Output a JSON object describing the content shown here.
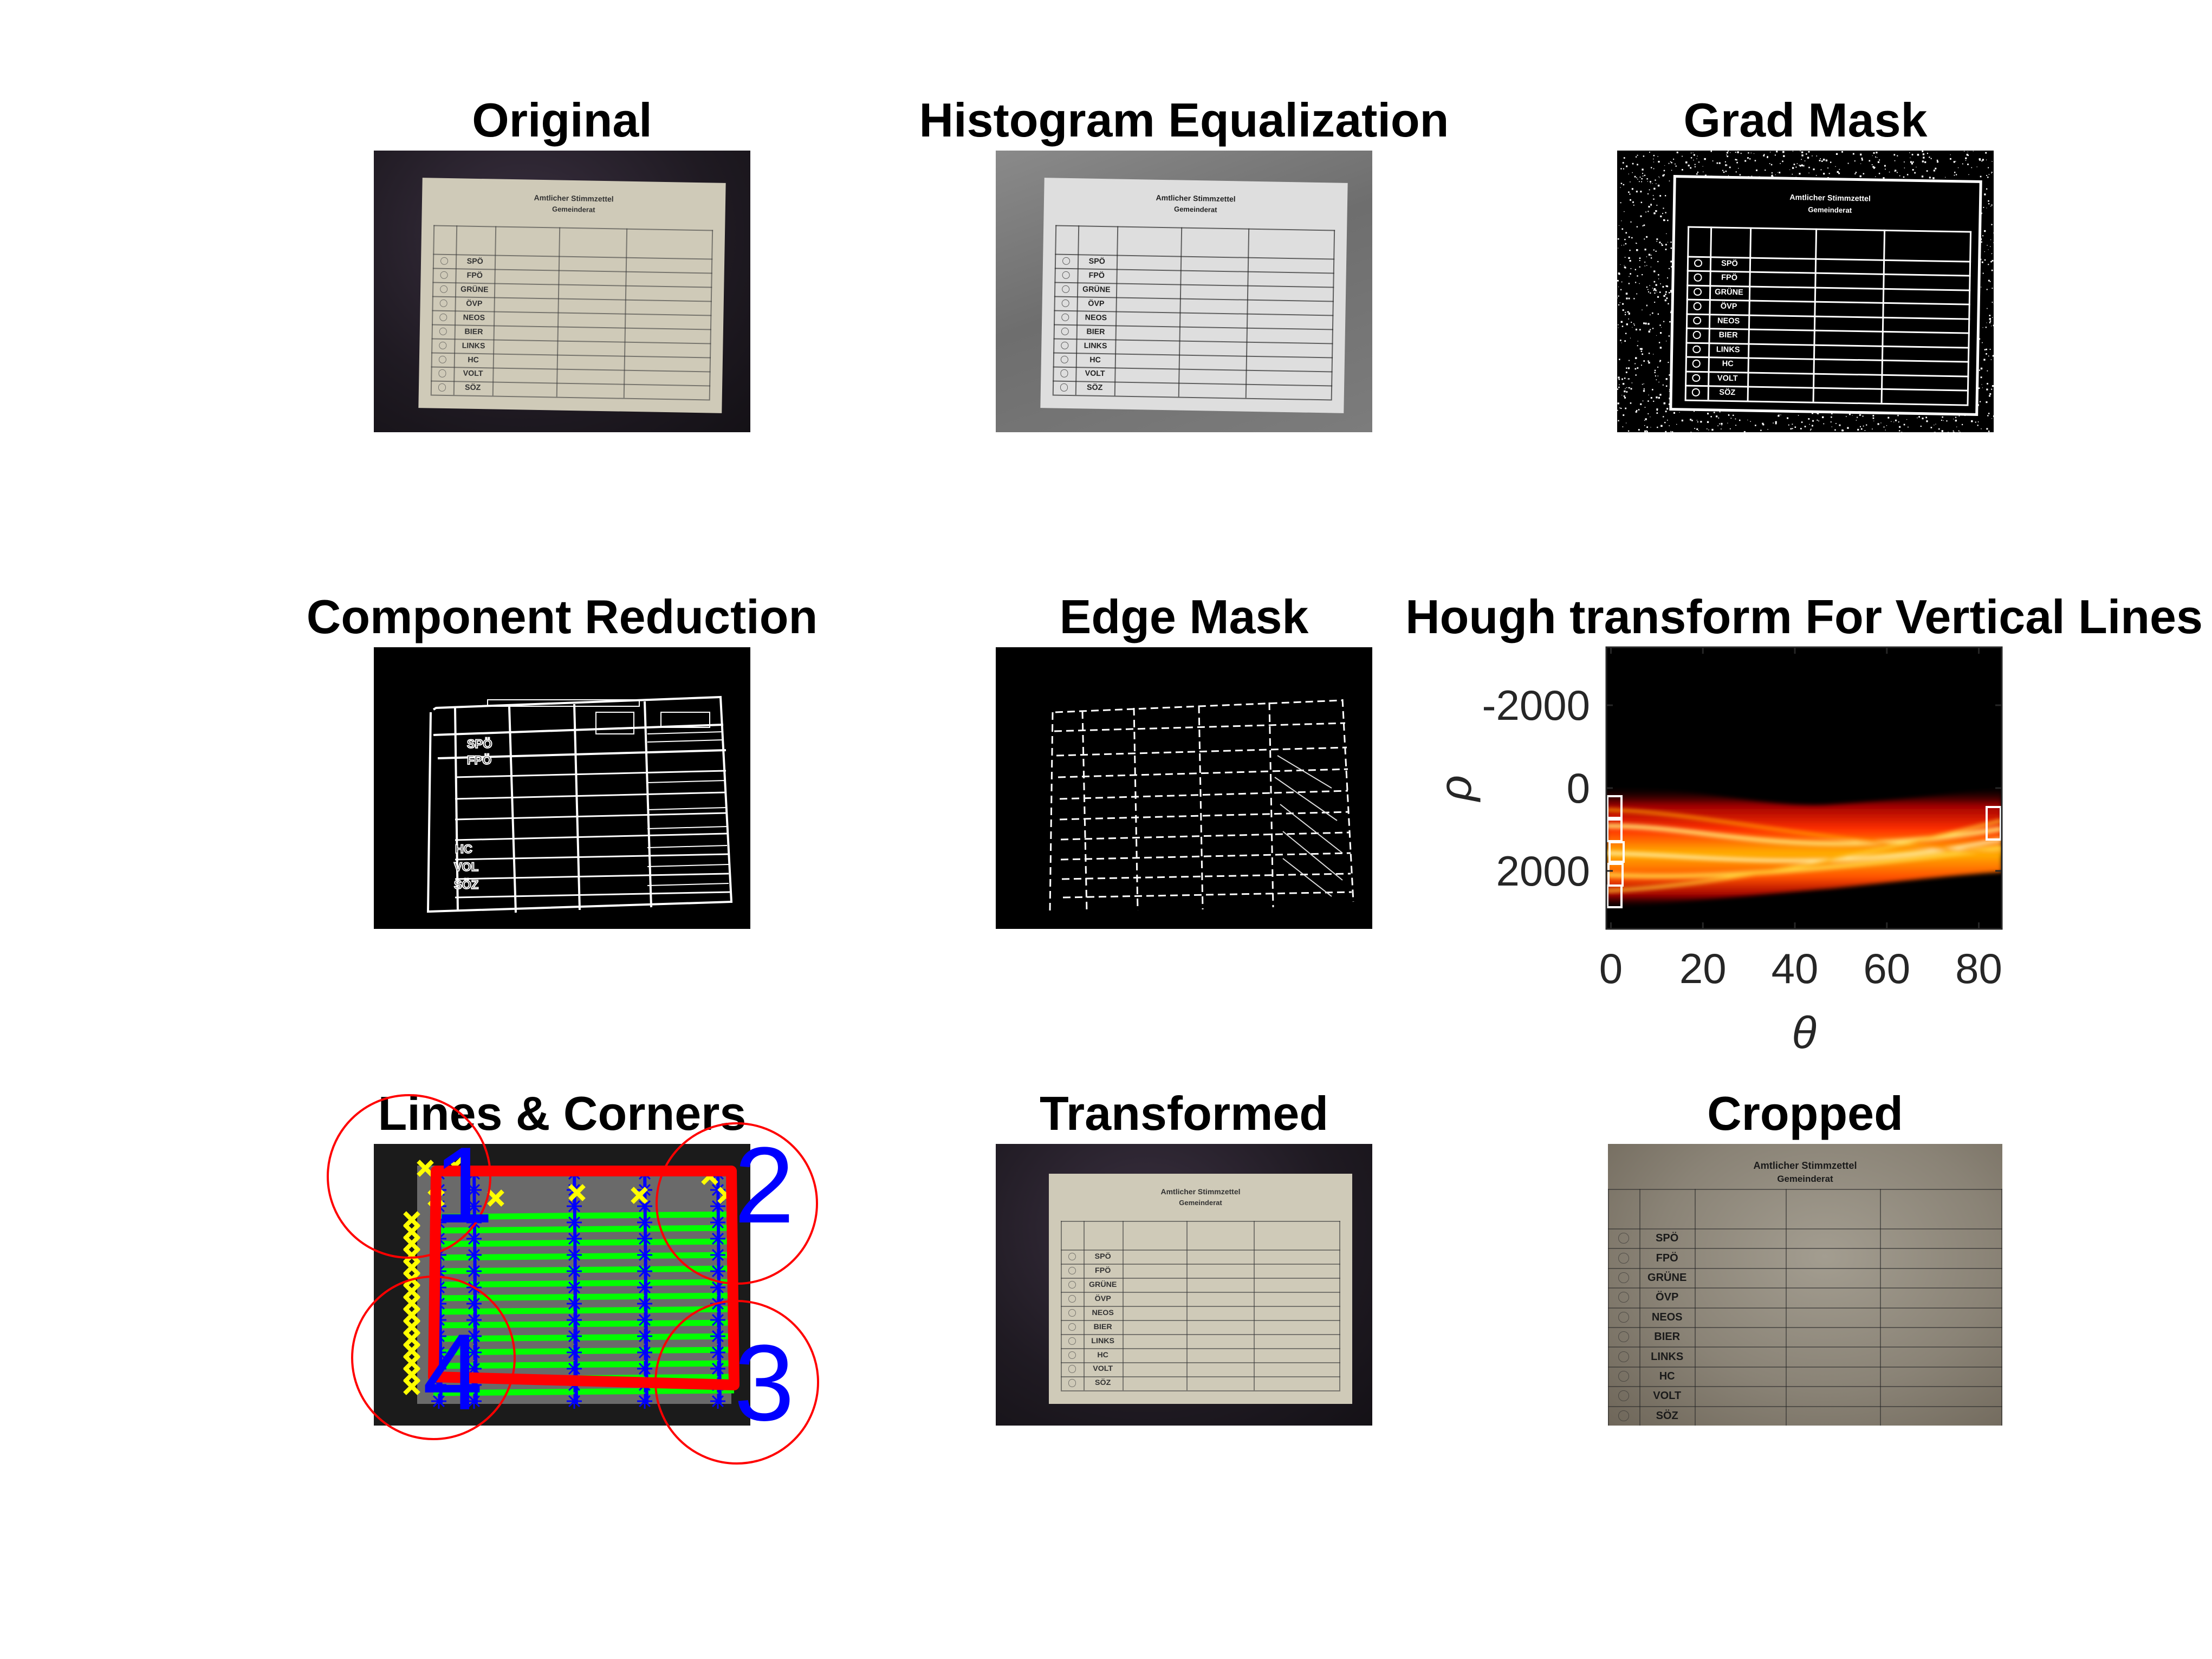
{
  "panels": {
    "original": "Original",
    "histeq": "Histogram Equalization",
    "gradmask": "Grad Mask",
    "component": "Component Reduction",
    "edgemask": "Edge Mask",
    "hough": "Hough transform For Vertical Lines",
    "lines": "Lines & Corners",
    "transformed": "Transformed",
    "cropped": "Cropped"
  },
  "ballot": {
    "title": "Amtlicher Stimmzettel",
    "subtitle": "Gemeinderat",
    "parties": [
      "SPÖ",
      "FPÖ",
      "GRÜNE",
      "ÖVP",
      "NEOS",
      "BIER",
      "LINKS",
      "HC",
      "VOLT",
      "SÖZ"
    ]
  },
  "component_labels": [
    "SPÖ",
    "FPÖ",
    "HC",
    "VOL",
    "SÖZ"
  ],
  "hough": {
    "xlabel": "θ",
    "ylabel": "ρ",
    "xticks": [
      "0",
      "20",
      "40",
      "60",
      "80"
    ],
    "yticks": [
      "-2000",
      "0",
      "2000"
    ]
  },
  "corners": [
    "1",
    "2",
    "3",
    "4"
  ],
  "colors": {
    "lines_horizontal": "#00ff00",
    "lines_vertical": "#0000ff",
    "corner_markers": "#ffff00",
    "quad": "#ff0000",
    "circles": "#ff0000",
    "corner_labels": "#0000ff"
  }
}
